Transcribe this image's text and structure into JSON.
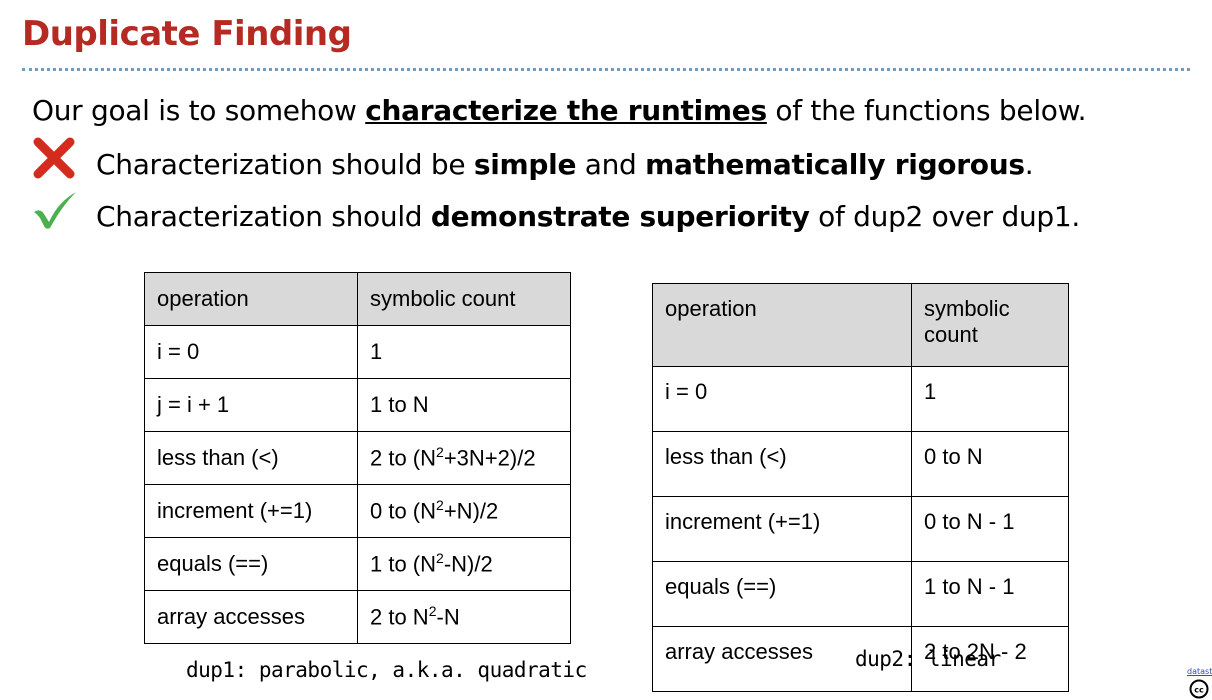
{
  "title": "Duplicate Finding",
  "goal": {
    "prefix": "Our goal is to somehow ",
    "emphasis": "characterize the runtimes",
    "suffix": " of the functions below."
  },
  "bullets": [
    {
      "icon": "cross-icon",
      "color": "#d32b1e",
      "parts": [
        {
          "text": "Characterization should be ",
          "bold": false
        },
        {
          "text": "simple",
          "bold": true
        },
        {
          "text": " and ",
          "bold": false
        },
        {
          "text": "mathematically rigorous",
          "bold": true
        },
        {
          "text": ".",
          "bold": false
        }
      ]
    },
    {
      "icon": "check-icon",
      "color": "#4caf50",
      "parts": [
        {
          "text": "Characterization should ",
          "bold": false
        },
        {
          "text": "demonstrate superiority",
          "bold": true
        },
        {
          "text": " of dup2 over dup1.",
          "bold": false
        }
      ]
    }
  ],
  "tables": {
    "dup1": {
      "headers": [
        "operation",
        "symbolic count"
      ],
      "rows": [
        [
          "i = 0",
          "1"
        ],
        [
          "j = i + 1",
          "1 to N"
        ],
        [
          "less than (<)",
          "2 to (N²+3N+2)/2"
        ],
        [
          "increment (+=1)",
          "0 to (N²+N)/2"
        ],
        [
          "equals (==)",
          "1 to (N²-N)/2"
        ],
        [
          "array accesses",
          "2 to N²-N"
        ]
      ],
      "caption": "dup1: parabolic, a.k.a. quadratic"
    },
    "dup2": {
      "headers": [
        "operation",
        "symbolic count"
      ],
      "rows": [
        [
          "i = 0",
          "1"
        ],
        [
          "less than (<)",
          "0 to N"
        ],
        [
          "increment (+=1)",
          "0 to N - 1"
        ],
        [
          "equals (==)",
          "1 to N - 1"
        ],
        [
          "array accesses",
          "2 to 2N - 2"
        ]
      ],
      "caption": "dup2: linear"
    }
  },
  "footer": {
    "license_link": "datasti"
  }
}
